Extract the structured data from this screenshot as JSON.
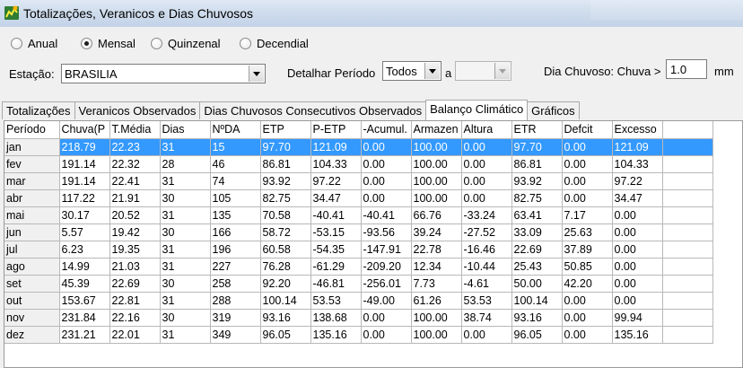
{
  "window": {
    "title": "Totalizações, Veranicos e Dias Chuvosos"
  },
  "period_options": [
    {
      "label": "Anual",
      "selected": false
    },
    {
      "label": "Mensal",
      "selected": true
    },
    {
      "label": "Quinzenal",
      "selected": false
    },
    {
      "label": "Decendial",
      "selected": false
    }
  ],
  "station": {
    "label": "Estação:",
    "value": "BRASILIA"
  },
  "detail": {
    "label": "Detalhar Período",
    "value": "Todos",
    "connector": "a",
    "end_value": ""
  },
  "rainy_day": {
    "label": "Dia Chuvoso: Chuva >",
    "value": "1.0",
    "unit": "mm"
  },
  "tabs": [
    {
      "label": "Totalizações",
      "active": false
    },
    {
      "label": "Veranicos Observados",
      "active": false
    },
    {
      "label": "Dias Chuvosos Consecutivos Observados",
      "active": false
    },
    {
      "label": "Balanço Climático",
      "active": true
    },
    {
      "label": "Gráficos",
      "active": false
    }
  ],
  "table": {
    "columns": [
      "Período",
      "Chuva(P",
      "T.Média",
      "Dias",
      "NºDA",
      "ETP",
      "P-ETP",
      "-Acumul.",
      "Armazen",
      "Altura",
      "ETR",
      "Defcit",
      "Excesso"
    ],
    "rows": [
      [
        "jan",
        "218.79",
        "22.23",
        "31",
        "15",
        "97.70",
        "121.09",
        "0.00",
        "100.00",
        "0.00",
        "97.70",
        "0.00",
        "121.09"
      ],
      [
        "fev",
        "191.14",
        "22.32",
        "28",
        "46",
        "86.81",
        "104.33",
        "0.00",
        "100.00",
        "0.00",
        "86.81",
        "0.00",
        "104.33"
      ],
      [
        "mar",
        "191.14",
        "22.41",
        "31",
        "74",
        "93.92",
        "97.22",
        "0.00",
        "100.00",
        "0.00",
        "93.92",
        "0.00",
        "97.22"
      ],
      [
        "abr",
        "117.22",
        "21.91",
        "30",
        "105",
        "82.75",
        "34.47",
        "0.00",
        "100.00",
        "0.00",
        "82.75",
        "0.00",
        "34.47"
      ],
      [
        "mai",
        "30.17",
        "20.52",
        "31",
        "135",
        "70.58",
        "-40.41",
        "-40.41",
        "66.76",
        "-33.24",
        "63.41",
        "7.17",
        "0.00"
      ],
      [
        "jun",
        "5.57",
        "19.42",
        "30",
        "166",
        "58.72",
        "-53.15",
        "-93.56",
        "39.24",
        "-27.52",
        "33.09",
        "25.63",
        "0.00"
      ],
      [
        "jul",
        "6.23",
        "19.35",
        "31",
        "196",
        "60.58",
        "-54.35",
        "-147.91",
        "22.78",
        "-16.46",
        "22.69",
        "37.89",
        "0.00"
      ],
      [
        "ago",
        "14.99",
        "21.03",
        "31",
        "227",
        "76.28",
        "-61.29",
        "-209.20",
        "12.34",
        "-10.44",
        "25.43",
        "50.85",
        "0.00"
      ],
      [
        "set",
        "45.39",
        "22.69",
        "30",
        "258",
        "92.20",
        "-46.81",
        "-256.01",
        "7.73",
        "-4.61",
        "50.00",
        "42.20",
        "0.00"
      ],
      [
        "out",
        "153.67",
        "22.81",
        "31",
        "288",
        "100.14",
        "53.53",
        "-49.00",
        "61.26",
        "53.53",
        "100.14",
        "0.00",
        "0.00"
      ],
      [
        "nov",
        "231.84",
        "22.16",
        "30",
        "319",
        "93.16",
        "138.68",
        "0.00",
        "100.00",
        "38.74",
        "93.16",
        "0.00",
        "99.94"
      ],
      [
        "dez",
        "231.21",
        "22.01",
        "31",
        "349",
        "96.05",
        "135.16",
        "0.00",
        "100.00",
        "0.00",
        "96.05",
        "0.00",
        "135.16"
      ]
    ],
    "selected_row": 0
  }
}
